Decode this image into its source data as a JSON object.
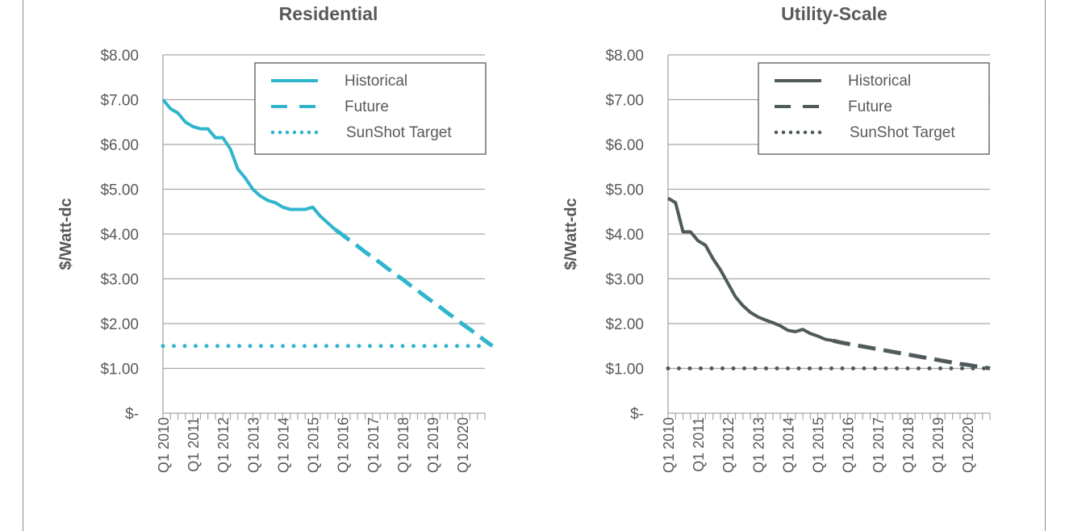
{
  "chart_data": [
    {
      "type": "line",
      "title": "Residential",
      "ylabel": "$/Watt-dc",
      "xlabel": "",
      "ylim": [
        0,
        8
      ],
      "yticks": [
        "$-",
        "$1.00",
        "$2.00",
        "$3.00",
        "$4.00",
        "$5.00",
        "$6.00",
        "$7.00",
        "$8.00"
      ],
      "xtick_labels": [
        "Q1 2010",
        "Q1 2011",
        "Q1 2012",
        "Q1 2013",
        "Q1 2014",
        "Q1 2015",
        "Q1 2016",
        "Q1 2017",
        "Q1 2018",
        "Q1 2019",
        "Q1 2020"
      ],
      "quarters": 44,
      "color": "#2fb5cc",
      "grid": true,
      "legend_position": "top-right",
      "series": [
        {
          "name": "Historical",
          "style": "solid",
          "start_index": 0,
          "values": [
            7.0,
            6.8,
            6.7,
            6.5,
            6.4,
            6.35,
            6.35,
            6.15,
            6.15,
            5.9,
            5.45,
            5.25,
            5.0,
            4.85,
            4.75,
            4.7,
            4.6,
            4.55,
            4.55,
            4.55,
            4.6,
            4.4,
            4.25,
            4.1
          ]
        },
        {
          "name": "Future",
          "style": "dashed",
          "start_index": 23,
          "values": [
            4.1,
            3.98,
            3.85,
            3.73,
            3.6,
            3.48,
            3.36,
            3.23,
            3.11,
            2.99,
            2.86,
            2.74,
            2.61,
            2.49,
            2.37,
            2.24,
            2.12,
            1.99,
            1.87,
            1.75,
            1.62,
            1.5
          ]
        },
        {
          "name": "SunShot Target",
          "style": "dotted",
          "start_index": 0,
          "constant": 1.5
        }
      ]
    },
    {
      "type": "line",
      "title": "Utility-Scale",
      "ylabel": "$/Watt-dc",
      "xlabel": "",
      "ylim": [
        0,
        8
      ],
      "yticks": [
        "$-",
        "$1.00",
        "$2.00",
        "$3.00",
        "$4.00",
        "$5.00",
        "$6.00",
        "$7.00",
        "$8.00"
      ],
      "xtick_labels": [
        "Q1 2010",
        "Q1 2011",
        "Q1 2012",
        "Q1 2013",
        "Q1 2014",
        "Q1 2015",
        "Q1 2016",
        "Q1 2017",
        "Q1 2018",
        "Q1 2019",
        "Q1 2020"
      ],
      "quarters": 44,
      "color": "#4f5a5a",
      "grid": true,
      "legend_position": "top-right",
      "series": [
        {
          "name": "Historical",
          "style": "solid",
          "start_index": 0,
          "values": [
            4.8,
            4.7,
            4.05,
            4.05,
            3.85,
            3.75,
            3.45,
            3.2,
            2.9,
            2.6,
            2.4,
            2.25,
            2.15,
            2.08,
            2.02,
            1.95,
            1.85,
            1.82,
            1.87,
            1.78,
            1.72,
            1.65,
            1.62
          ]
        },
        {
          "name": "Future",
          "style": "dashed",
          "start_index": 22,
          "values": [
            1.62,
            1.58,
            1.55,
            1.52,
            1.49,
            1.46,
            1.43,
            1.4,
            1.37,
            1.34,
            1.31,
            1.28,
            1.25,
            1.22,
            1.19,
            1.16,
            1.13,
            1.1,
            1.08,
            1.05,
            1.03,
            1.0
          ]
        },
        {
          "name": "SunShot Target",
          "style": "dotted",
          "start_index": 0,
          "constant": 1.0
        }
      ]
    }
  ]
}
